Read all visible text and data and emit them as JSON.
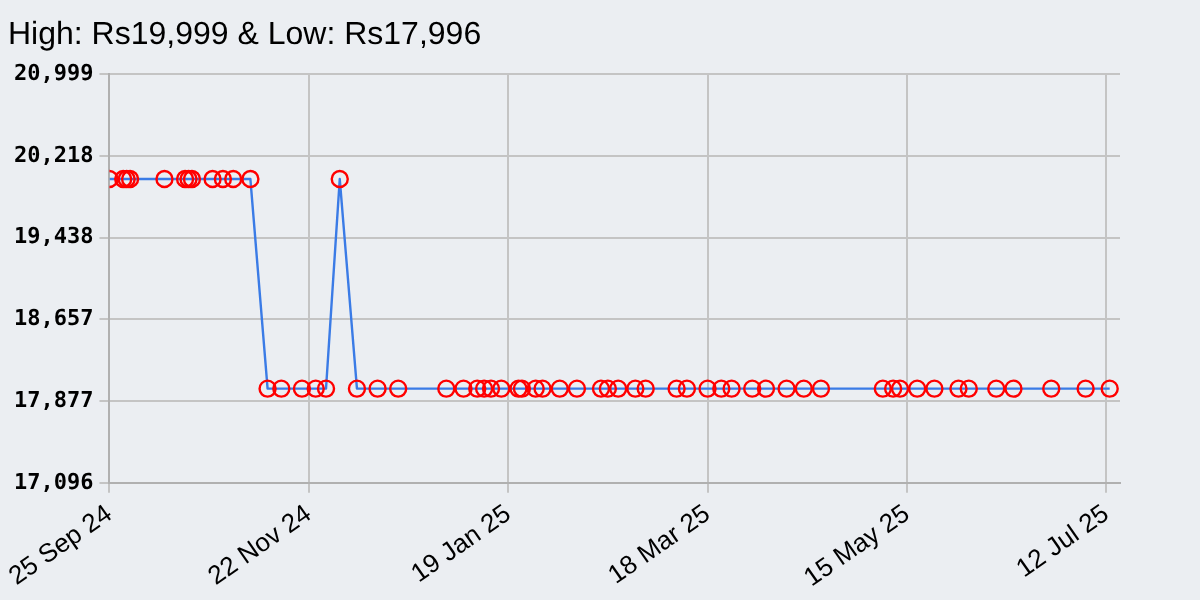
{
  "chart_data": {
    "type": "line",
    "title": "High: Rs19,999 & Low: Rs17,996",
    "x": [
      "2024-09-25",
      "2024-09-29",
      "2024-09-30",
      "2024-10-01",
      "2024-10-11",
      "2024-10-17",
      "2024-10-18",
      "2024-10-19",
      "2024-10-25",
      "2024-10-28",
      "2024-10-31",
      "2024-11-05",
      "2024-11-10",
      "2024-11-14",
      "2024-11-20",
      "2024-11-24",
      "2024-11-27",
      "2024-12-01",
      "2024-12-06",
      "2024-12-12",
      "2024-12-18",
      "2025-01-01",
      "2025-01-06",
      "2025-01-10",
      "2025-01-12",
      "2025-01-14",
      "2025-01-17",
      "2025-01-22",
      "2025-01-23",
      "2025-01-27",
      "2025-01-29",
      "2025-02-03",
      "2025-02-08",
      "2025-02-15",
      "2025-02-17",
      "2025-02-20",
      "2025-02-25",
      "2025-02-28",
      "2025-03-09",
      "2025-03-12",
      "2025-03-18",
      "2025-03-22",
      "2025-03-25",
      "2025-03-31",
      "2025-04-04",
      "2025-04-10",
      "2025-04-15",
      "2025-04-20",
      "2025-05-08",
      "2025-05-11",
      "2025-05-13",
      "2025-05-18",
      "2025-05-23",
      "2025-05-30",
      "2025-06-02",
      "2025-06-10",
      "2025-06-15",
      "2025-06-26",
      "2025-07-06",
      "2025-07-13"
    ],
    "series": [
      {
        "color": "#3a7be6",
        "colors": [
          "#ff0000",
          "#ff0000",
          "#ff0000",
          "#ff0000",
          "#ff0000",
          "#ff0000",
          "#ff0000",
          "#ff0000",
          "#ff0000",
          "#ff0000",
          "#ff0000",
          "#ff0000",
          "#ff0000",
          "#ff0000",
          "#ff0000",
          "#ff0000",
          "#ff0000",
          "#ff0000",
          "#ff0000",
          "#ff0000",
          "#ff0000",
          "#ff0000",
          "#ff0000",
          "#ff0000",
          "#ff0000",
          "#ff0000",
          "#ff0000",
          "#ff0000",
          "#ff0000",
          "#ff0000",
          "#ff0000",
          "#ff0000",
          "#ff0000",
          "#ff0000",
          "#ff0000",
          "#ff0000",
          "#ff0000",
          "#ff0000",
          "#ff0000",
          "#ff0000",
          "#ff0000",
          "#ff0000",
          "#ff0000",
          "#ff0000",
          "#ff0000",
          "#ff0000",
          "#ff0000",
          "#ff0000",
          "#ff0000",
          "#ff0000",
          "#ff0000",
          "#ff0000",
          "#ff0000",
          "#ff0000",
          "#ff0000",
          "#ff0000",
          "#ff0000",
          "#ff0000",
          "#ff0000",
          "#ff0000"
        ],
        "values": [
          19999,
          19999,
          19999,
          19999,
          19999,
          19999,
          19999,
          19999,
          19999,
          19999,
          19999,
          19999,
          17996,
          17996,
          17996,
          17996,
          17996,
          19999,
          17996,
          17996,
          17996,
          17996,
          17996,
          17996,
          17996,
          17996,
          17996,
          17996,
          17996,
          17996,
          17996,
          17996,
          17996,
          17996,
          17996,
          17996,
          17996,
          17996,
          17996,
          17996,
          17996,
          17996,
          17996,
          17996,
          17996,
          17996,
          17996,
          17996,
          17996,
          17996,
          17996,
          17996,
          17996,
          17996,
          17996,
          17996,
          17996,
          17996,
          17996,
          17996
        ]
      }
    ],
    "xlim": [
      "2024-09-25",
      "2025-07-16"
    ],
    "xticks": [
      {
        "value": "2024-09-25",
        "label": "25 Sep 24"
      },
      {
        "value": "2024-11-22",
        "label": "22 Nov 24"
      },
      {
        "value": "2025-01-19",
        "label": "19 Jan 25"
      },
      {
        "value": "2025-03-18",
        "label": "18 Mar 25"
      },
      {
        "value": "2025-05-15",
        "label": "15 May 25"
      },
      {
        "value": "2025-07-12",
        "label": "12 Jul 25"
      }
    ],
    "ylim": [
      17096,
      20999
    ],
    "yticks": [
      {
        "value": 17096,
        "label": "17,096"
      },
      {
        "value": 17877,
        "label": "17,877"
      },
      {
        "value": 18657,
        "label": "18,657"
      },
      {
        "value": 19438,
        "label": "19,438"
      },
      {
        "value": 20218,
        "label": "20,218"
      },
      {
        "value": 20999,
        "label": "20,999"
      }
    ],
    "grid": true,
    "legend": false,
    "marker": "circle",
    "line_style": "solid"
  }
}
